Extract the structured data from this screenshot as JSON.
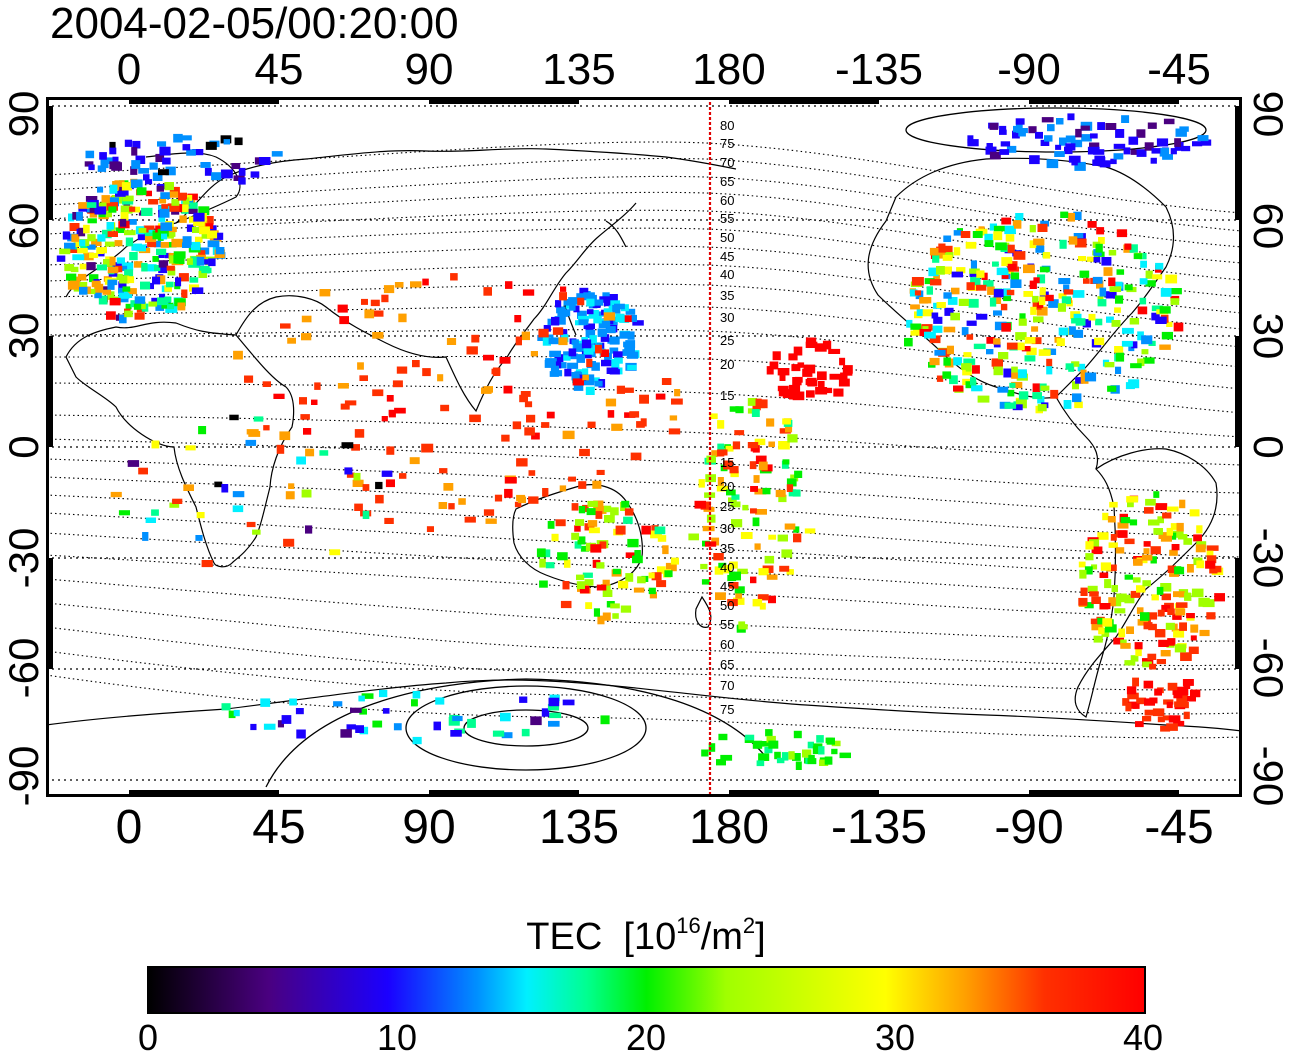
{
  "title": "2004-02-05/00:20:00",
  "top_ticks": [
    "0",
    "45",
    "90",
    "135",
    "180",
    "-135",
    "-90",
    "-45"
  ],
  "bottom_ticks": [
    "0",
    "45",
    "90",
    "135",
    "180",
    "-135",
    "-90",
    "-45"
  ],
  "left_ticks": [
    "90",
    "60",
    "30",
    "0",
    "-30",
    "-60",
    "-90"
  ],
  "right_ticks": [
    "90",
    "60",
    "30",
    "0",
    "-30",
    "-60",
    "-90"
  ],
  "contour_labels": [
    "80",
    "75",
    "70",
    "65",
    "60",
    "55",
    "50",
    "45",
    "40",
    "35",
    "30",
    "25",
    "20",
    "15",
    "15",
    "20",
    "25",
    "30",
    "35",
    "40",
    "45",
    "50",
    "55",
    "60",
    "65",
    "70",
    "75"
  ],
  "colorbar": {
    "title": "TEC",
    "unit_prefix": "[10",
    "unit_exp1": "16",
    "unit_mid": "/m",
    "unit_exp2": "2",
    "unit_suffix": "]",
    "ticks": [
      "0",
      "10",
      "20",
      "30",
      "40"
    ],
    "range": [
      0,
      40
    ],
    "colormap": [
      "#000000",
      "#4a0080",
      "#1b00ff",
      "#0090ff",
      "#00f0ff",
      "#00ff90",
      "#00f000",
      "#a0ff00",
      "#ffff00",
      "#ffa000",
      "#ff3000",
      "#ff0000"
    ]
  },
  "colors": {
    "midnight_line": "#e00000"
  }
}
